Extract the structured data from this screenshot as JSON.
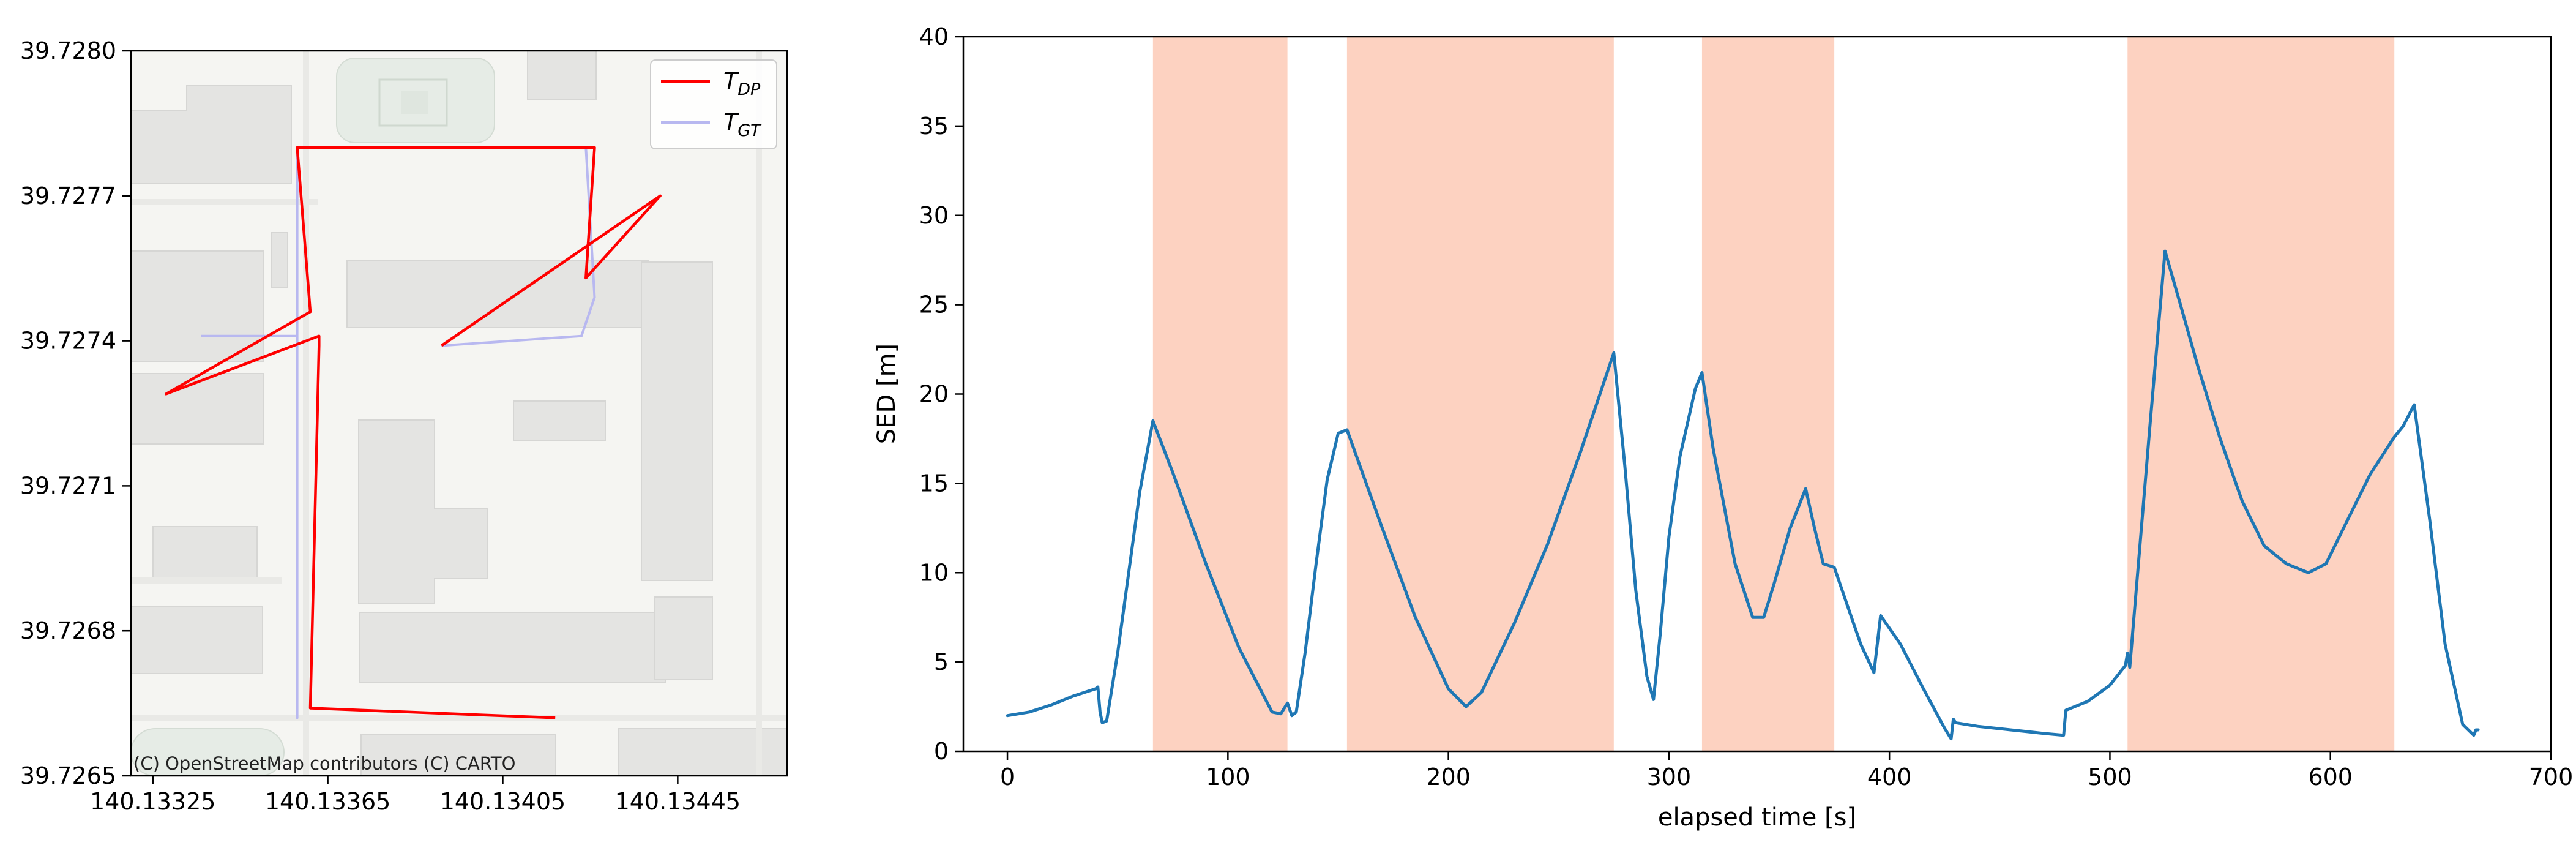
{
  "chart_data": [
    {
      "type": "line",
      "subtype": "map-trajectory",
      "title": "",
      "xlabel": "",
      "ylabel": "",
      "xlim": [
        140.1332,
        140.1347
      ],
      "ylim": [
        39.7265,
        39.728
      ],
      "xticks": [
        140.13325,
        140.13365,
        140.13405,
        140.13445
      ],
      "xtick_labels": [
        "140.13325",
        "140.13365",
        "140.13405",
        "140.13445"
      ],
      "yticks": [
        39.7265,
        39.7268,
        39.7271,
        39.7274,
        39.7277,
        39.728
      ],
      "ytick_labels": [
        "39.7265",
        "39.7268",
        "39.7271",
        "39.7274",
        "39.7277",
        "39.7280"
      ],
      "attribution": "(C) OpenStreetMap contributors (C) CARTO",
      "legend_position": "top-right",
      "series": [
        {
          "name": "T_DP",
          "legend_main": "T",
          "legend_sub": "DP",
          "color": "#ff0000",
          "points": [
            [
              140.13417,
              39.72662
            ],
            [
              140.13361,
              39.72664
            ],
            [
              140.13363,
              39.72739
            ],
            [
              140.13363,
              39.72741
            ],
            [
              140.13328,
              39.72729
            ],
            [
              140.13361,
              39.72746
            ],
            [
              140.13358,
              39.7278
            ],
            [
              140.13426,
              39.7278
            ],
            [
              140.13424,
              39.72753
            ],
            [
              140.13441,
              39.7277
            ],
            [
              140.13391,
              39.72739
            ]
          ]
        },
        {
          "name": "T_GT",
          "legend_main": "T",
          "legend_sub": "GT",
          "color": "#b8b8f0",
          "points": [
            [
              140.13336,
              39.72741
            ],
            [
              140.13358,
              39.72741
            ],
            [
              140.13358,
              39.72662
            ],
            [
              140.13358,
              39.7278
            ],
            [
              140.13424,
              39.7278
            ],
            [
              140.13426,
              39.72749
            ],
            [
              140.13423,
              39.72741
            ],
            [
              140.13391,
              39.72739
            ]
          ]
        }
      ]
    },
    {
      "type": "line",
      "title": "",
      "xlabel": "elapsed time [s]",
      "ylabel": "SED [m]",
      "xlim": [
        -20,
        700
      ],
      "ylim": [
        0,
        40
      ],
      "xticks": [
        0,
        100,
        200,
        300,
        400,
        500,
        600,
        700
      ],
      "yticks": [
        0,
        5,
        10,
        15,
        20,
        25,
        30,
        35,
        40
      ],
      "shaded_spans": [
        [
          66,
          127
        ],
        [
          154,
          275
        ],
        [
          315,
          375
        ],
        [
          508,
          629
        ]
      ],
      "shade_color": "#fcc3ac",
      "series": [
        {
          "color": "#1f77b4",
          "x": [
            0,
            10,
            20,
            30,
            40,
            41,
            42,
            43,
            45,
            50,
            55,
            60,
            66,
            75,
            90,
            105,
            120,
            124,
            127,
            129,
            131,
            135,
            140,
            145,
            150,
            154,
            170,
            185,
            200,
            208,
            215,
            230,
            245,
            260,
            275,
            280,
            285,
            290,
            293,
            296,
            300,
            305,
            312,
            315,
            320,
            330,
            338,
            343,
            348,
            355,
            362,
            366,
            370,
            375,
            380,
            387,
            393,
            396,
            405,
            415,
            425,
            428,
            429,
            430,
            440,
            455,
            470,
            479,
            480,
            490,
            500,
            507,
            508,
            509,
            518,
            525,
            532,
            540,
            550,
            560,
            570,
            580,
            590,
            598,
            608,
            618,
            629,
            633,
            638,
            645,
            652,
            660,
            665,
            666,
            667
          ],
          "y": [
            2.0,
            2.2,
            2.6,
            3.1,
            3.5,
            3.6,
            2.2,
            1.6,
            1.7,
            5.5,
            10.0,
            14.5,
            18.5,
            15.6,
            10.5,
            5.8,
            2.2,
            2.1,
            2.7,
            2.0,
            2.2,
            5.5,
            10.5,
            15.2,
            17.8,
            18.0,
            12.5,
            7.5,
            3.5,
            2.5,
            3.3,
            7.2,
            11.6,
            16.8,
            22.3,
            16.0,
            9.0,
            4.2,
            2.9,
            6.5,
            12.0,
            16.5,
            20.3,
            21.2,
            17.0,
            10.5,
            7.5,
            7.5,
            9.5,
            12.5,
            14.7,
            12.5,
            10.5,
            10.3,
            8.5,
            6.0,
            4.4,
            7.6,
            6.0,
            3.6,
            1.3,
            0.7,
            1.8,
            1.6,
            1.4,
            1.2,
            1.0,
            0.9,
            2.3,
            2.8,
            3.7,
            4.8,
            5.5,
            4.7,
            18.0,
            28.0,
            25.0,
            21.5,
            17.5,
            14.0,
            11.5,
            10.5,
            10.0,
            10.5,
            13.0,
            15.5,
            17.6,
            18.2,
            19.4,
            13.0,
            6.0,
            1.5,
            0.9,
            1.2,
            1.2
          ]
        }
      ]
    }
  ]
}
